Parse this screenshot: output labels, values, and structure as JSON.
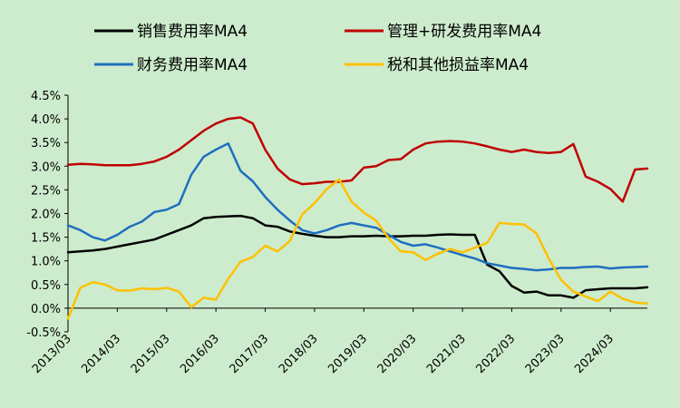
{
  "chart_data": {
    "type": "line",
    "title": "",
    "xlabel": "",
    "ylabel": "",
    "ylim": [
      -0.5,
      4.5
    ],
    "y_ticks": [
      "-0.5%",
      "0.0%",
      "0.5%",
      "1.0%",
      "1.5%",
      "2.0%",
      "2.5%",
      "3.0%",
      "3.5%",
      "4.0%",
      "4.5%"
    ],
    "y_tick_values": [
      -0.5,
      0.0,
      0.5,
      1.0,
      1.5,
      2.0,
      2.5,
      3.0,
      3.5,
      4.0,
      4.5
    ],
    "x_tick_labels": [
      "2013/03",
      "2014/03",
      "2015/03",
      "2016/03",
      "2017/03",
      "2018/03",
      "2019/03",
      "2020/03",
      "2021/03",
      "2022/03",
      "2023/03",
      "2024/03"
    ],
    "x_start": "2013/03",
    "x_end": "2024/03",
    "grid": false,
    "legend_placement": "top",
    "background_color": "#cdeccd",
    "series": [
      {
        "name": "销售费用率MA4",
        "color": "#000000",
        "values": [
          1.18,
          1.2,
          1.22,
          1.25,
          1.3,
          1.35,
          1.4,
          1.45,
          1.55,
          1.65,
          1.75,
          1.9,
          1.93,
          1.94,
          1.95,
          1.9,
          1.75,
          1.72,
          1.62,
          1.57,
          1.53,
          1.5,
          1.5,
          1.52,
          1.52,
          1.53,
          1.52,
          1.52,
          1.53,
          1.53,
          1.55,
          1.56,
          1.55,
          1.55,
          0.92,
          0.78,
          0.47,
          0.33,
          0.35,
          0.27,
          0.27,
          0.22,
          0.38,
          0.4,
          0.42,
          0.42,
          0.42,
          0.44
        ]
      },
      {
        "name": "管理+研发费用率MA4",
        "color": "#c00000",
        "values": [
          3.03,
          3.05,
          3.04,
          3.02,
          3.02,
          3.02,
          3.05,
          3.1,
          3.2,
          3.35,
          3.55,
          3.75,
          3.9,
          4.0,
          4.03,
          3.9,
          3.35,
          2.95,
          2.72,
          2.62,
          2.64,
          2.67,
          2.67,
          2.7,
          2.97,
          3.0,
          3.13,
          3.15,
          3.35,
          3.48,
          3.52,
          3.53,
          3.52,
          3.48,
          3.42,
          3.35,
          3.3,
          3.35,
          3.3,
          3.28,
          3.3,
          3.47,
          2.78,
          2.67,
          2.52,
          2.25,
          2.93,
          2.95
        ]
      },
      {
        "name": "财务费用率MA4",
        "color": "#1f6fbf",
        "values": [
          1.75,
          1.65,
          1.5,
          1.43,
          1.55,
          1.72,
          1.83,
          2.03,
          2.08,
          2.2,
          2.82,
          3.2,
          3.35,
          3.48,
          2.9,
          2.68,
          2.35,
          2.08,
          1.85,
          1.65,
          1.58,
          1.65,
          1.75,
          1.8,
          1.75,
          1.7,
          1.55,
          1.4,
          1.32,
          1.35,
          1.28,
          1.2,
          1.12,
          1.05,
          0.95,
          0.9,
          0.85,
          0.83,
          0.8,
          0.82,
          0.85,
          0.85,
          0.87,
          0.88,
          0.84,
          0.86,
          0.87,
          0.88
        ]
      },
      {
        "name": "税和其他损益率MA4",
        "color": "#ffc000",
        "values": [
          -0.22,
          0.43,
          0.55,
          0.5,
          0.38,
          0.37,
          0.42,
          0.4,
          0.43,
          0.35,
          0.02,
          0.22,
          0.18,
          0.62,
          0.98,
          1.08,
          1.32,
          1.2,
          1.42,
          1.98,
          2.22,
          2.52,
          2.72,
          2.25,
          2.02,
          1.85,
          1.48,
          1.2,
          1.18,
          1.02,
          1.15,
          1.25,
          1.18,
          1.28,
          1.38,
          1.8,
          1.78,
          1.77,
          1.58,
          1.05,
          0.6,
          0.35,
          0.25,
          0.15,
          0.35,
          0.2,
          0.12,
          0.1
        ]
      }
    ]
  }
}
